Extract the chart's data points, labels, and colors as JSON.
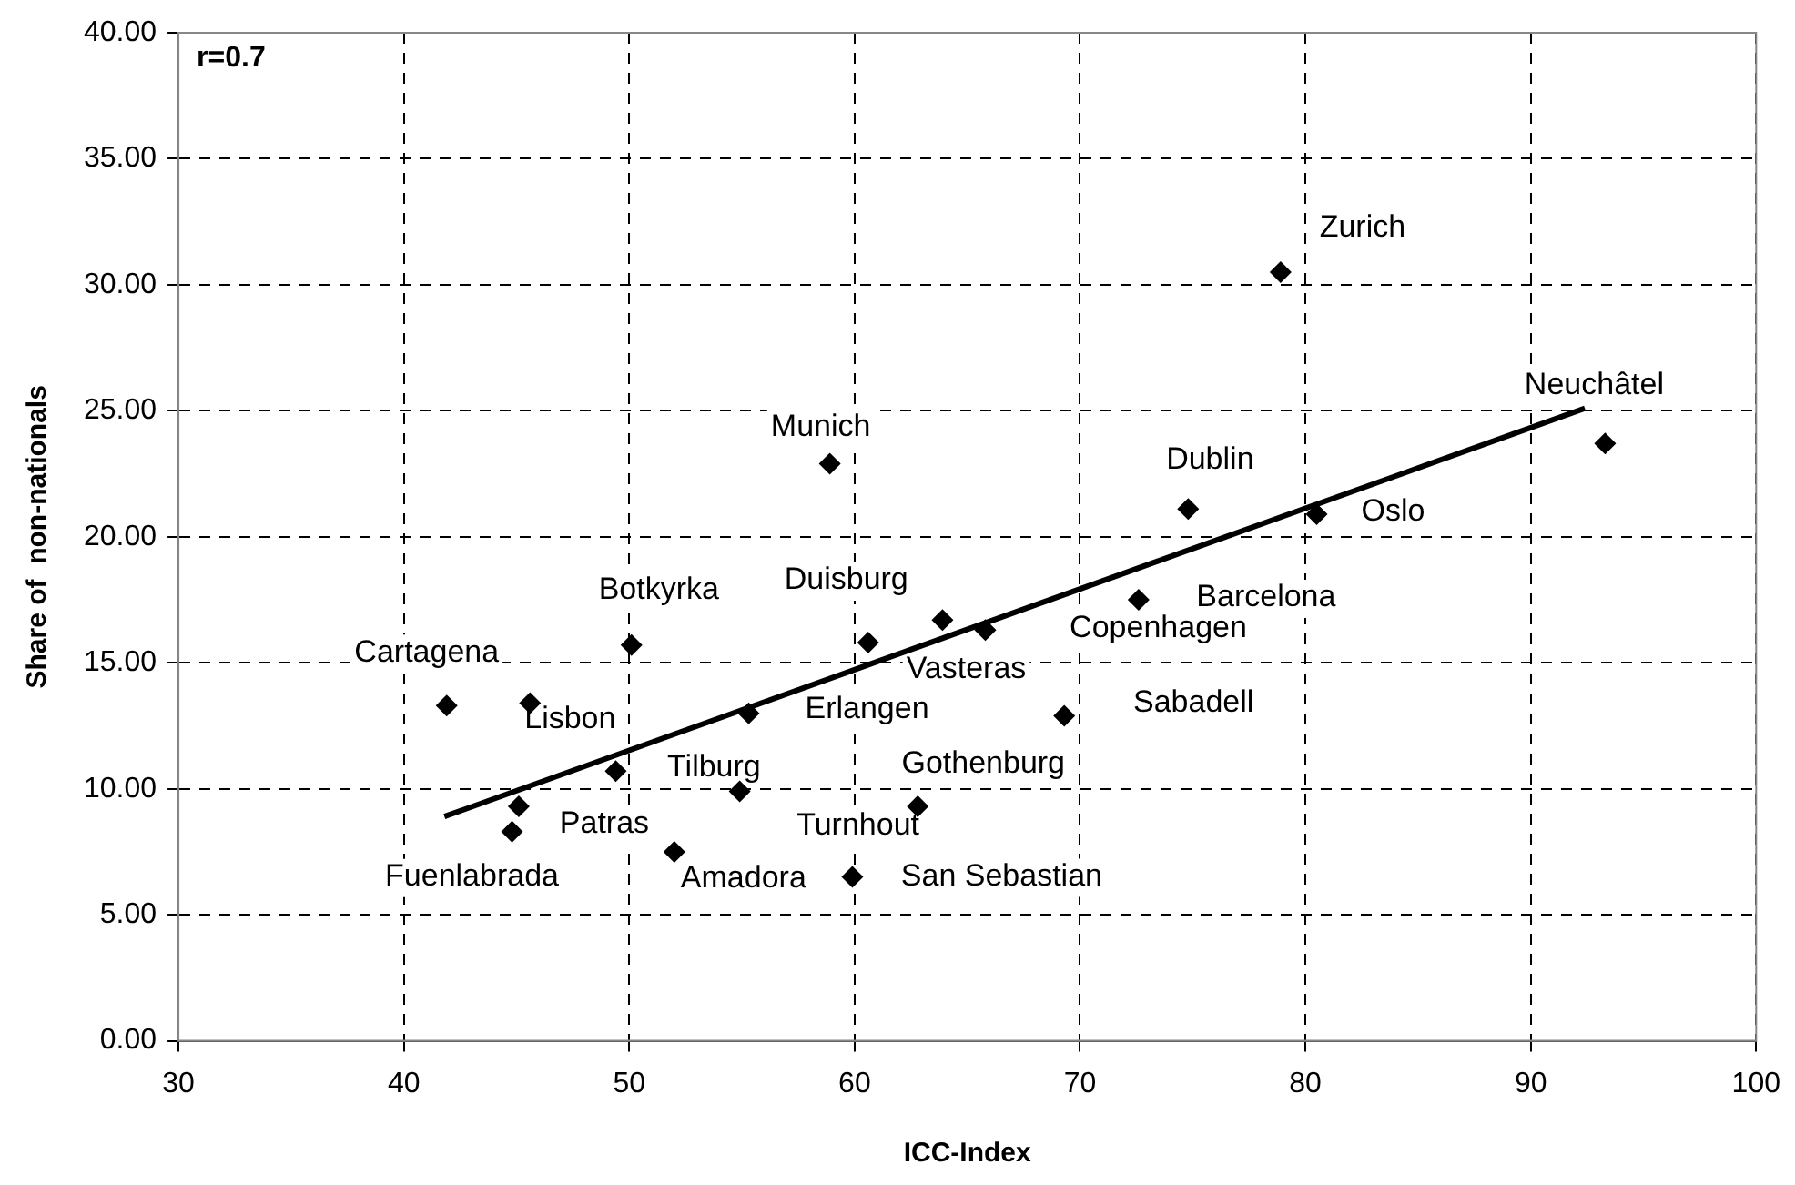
{
  "chart_data": {
    "type": "scatter",
    "xlabel": "ICC-Index",
    "ylabel": "Share of  non-nationals",
    "xlim": [
      30,
      100
    ],
    "xticks": [
      30,
      40,
      50,
      60,
      70,
      80,
      90,
      100
    ],
    "ylim": [
      0,
      40
    ],
    "yticks": [
      {
        "value": 0,
        "label": "0.00"
      },
      {
        "value": 5,
        "label": "5.00"
      },
      {
        "value": 10,
        "label": "10.00"
      },
      {
        "value": 15,
        "label": "15.00"
      },
      {
        "value": 20,
        "label": "20.00"
      },
      {
        "value": 25,
        "label": "25.00"
      },
      {
        "value": 30,
        "label": "30.00"
      },
      {
        "value": 35,
        "label": "35.00"
      },
      {
        "value": 40,
        "label": "40.00"
      }
    ],
    "grid": true,
    "legend": false,
    "marker": "diamond",
    "series": [
      {
        "type": "scatter",
        "color": "#000000",
        "x": [
          41.9,
          45.6,
          50.1,
          58.9,
          60.6,
          63.9,
          65.8,
          55.3,
          49.4,
          54.9,
          62.8,
          45.1,
          44.8,
          52.0,
          59.9,
          69.3,
          72.6,
          74.8,
          80.5,
          78.9,
          93.3
        ],
        "values": [
          13.3,
          13.4,
          15.7,
          22.9,
          15.8,
          16.7,
          16.3,
          13.0,
          10.7,
          9.9,
          9.3,
          9.3,
          8.3,
          7.5,
          6.5,
          12.9,
          17.5,
          21.1,
          20.9,
          30.5,
          23.7
        ]
      },
      {
        "type": "line",
        "color": "#000000",
        "marker": "none",
        "line_style": "solid",
        "x": [
          41.8,
          92.4
        ],
        "values": [
          8.9,
          25.1
        ]
      }
    ],
    "annotations": [
      "r=0.7",
      {
        "text": "Cartagena",
        "x": 41.9,
        "y": 13.3
      },
      {
        "text": "Lisbon",
        "x": 45.6,
        "y": 13.4
      },
      {
        "text": "Botkyrka",
        "x": 50.1,
        "y": 15.7
      },
      {
        "text": "Munich",
        "x": 58.9,
        "y": 22.9
      },
      {
        "text": "Duisburg",
        "x": 60.6,
        "y": 15.8
      },
      {
        "text": "Vasteras",
        "x": 63.9,
        "y": 16.7
      },
      {
        "text": "Copenhagen",
        "x": 65.8,
        "y": 16.3
      },
      {
        "text": "Erlangen",
        "x": 55.3,
        "y": 13.0
      },
      {
        "text": "Tilburg",
        "x": 49.4,
        "y": 10.7
      },
      {
        "text": "Turnhout",
        "x": 54.9,
        "y": 9.9
      },
      {
        "text": "Gothenburg",
        "x": 62.8,
        "y": 9.3
      },
      {
        "text": "Patras",
        "x": 45.1,
        "y": 9.3
      },
      {
        "text": "Fuenlabrada",
        "x": 44.8,
        "y": 8.3
      },
      {
        "text": "Amadora",
        "x": 52.0,
        "y": 7.5
      },
      {
        "text": "San Sebastian",
        "x": 59.9,
        "y": 6.5
      },
      {
        "text": "Sabadell",
        "x": 69.3,
        "y": 12.9
      },
      {
        "text": "Barcelona",
        "x": 72.6,
        "y": 17.5
      },
      {
        "text": "Dublin",
        "x": 74.8,
        "y": 21.1
      },
      {
        "text": "Oslo",
        "x": 80.5,
        "y": 20.9
      },
      {
        "text": "Zurich",
        "x": 78.9,
        "y": 30.5
      },
      {
        "text": "Neuchâtel",
        "x": 93.3,
        "y": 23.7
      }
    ]
  }
}
